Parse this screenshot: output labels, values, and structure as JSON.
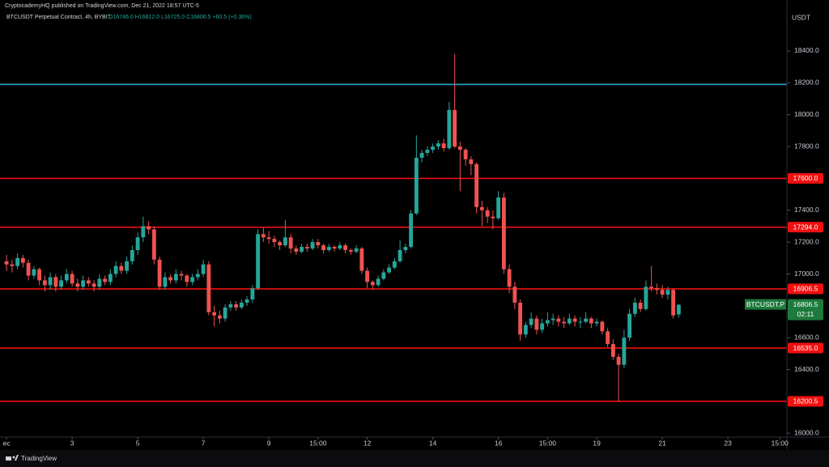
{
  "header": {
    "publisher": "CryptocademyHQ published on TradingView.com, Dec 21, 2022 18:57 UTC-5"
  },
  "footer": {
    "brand": "TradingView"
  },
  "chart_data": {
    "type": "candlestick",
    "symbol": "BTCUSDT Perpetual Contract, 4h, BYBIT",
    "ohlc": "O16746.0 H16812.0 L16725.0 C16806.5 +60.5 (+0.36%)",
    "currency": "USDT",
    "up_color": "#26a69a",
    "down_color": "#ef5350",
    "xlim": [
      -1.2,
      142.5
    ],
    "ylim": [
      15900,
      18720
    ],
    "xticks": [
      {
        "value": 0,
        "label": "ec"
      },
      {
        "value": 12,
        "label": "3"
      },
      {
        "value": 24,
        "label": "5"
      },
      {
        "value": 36,
        "label": "7"
      },
      {
        "value": 48,
        "label": "9"
      },
      {
        "value": 57,
        "label": "15:00"
      },
      {
        "value": 66,
        "label": "12"
      },
      {
        "value": 78,
        "label": "14"
      },
      {
        "value": 90,
        "label": "16"
      },
      {
        "value": 99,
        "label": "15:00"
      },
      {
        "value": 108,
        "label": "19"
      },
      {
        "value": 120,
        "label": "21"
      },
      {
        "value": 132,
        "label": "23"
      },
      {
        "value": 141.5,
        "label": "15:00"
      }
    ],
    "yticks": [
      {
        "value": 18400,
        "label": "18400.0"
      },
      {
        "value": 18200,
        "label": "18200.0"
      },
      {
        "value": 18000,
        "label": "18000.0"
      },
      {
        "value": 17800,
        "label": "17800.0"
      },
      {
        "value": 17400,
        "label": "17400.0"
      },
      {
        "value": 17200,
        "label": "17200.0"
      },
      {
        "value": 17000,
        "label": "17000.0"
      },
      {
        "value": 16600,
        "label": "16600.0"
      },
      {
        "value": 16400,
        "label": "16400.0"
      },
      {
        "value": 16000,
        "label": "16000.0"
      }
    ],
    "levels": [
      {
        "value": 18190,
        "color": "#22a8c8"
      },
      {
        "value": 17600,
        "label": "17600.0",
        "color": "#f01010"
      },
      {
        "value": 17294,
        "label": "17294.0",
        "color": "#f01010"
      },
      {
        "value": 16906.5,
        "label": "16906.5",
        "color": "#f01010"
      },
      {
        "value": 16535,
        "label": "16535.0",
        "color": "#f01010"
      },
      {
        "value": 16200.5,
        "label": "16200.5",
        "color": "#f01010"
      }
    ],
    "last_price": {
      "name": "BTCUSDT.P",
      "value": 16806.5,
      "label": "16806.5",
      "countdown": "02:11",
      "color": "#1e7a3c"
    },
    "candles": [
      [
        17080,
        17120,
        17020,
        17060
      ],
      [
        17060,
        17090,
        17010,
        17050
      ],
      [
        17050,
        17130,
        17030,
        17100
      ],
      [
        17100,
        17120,
        17040,
        17070
      ],
      [
        17070,
        17090,
        16960,
        16990
      ],
      [
        16990,
        17050,
        16970,
        17030
      ],
      [
        17030,
        17040,
        16930,
        16960
      ],
      [
        16960,
        16990,
        16890,
        16930
      ],
      [
        16930,
        17010,
        16900,
        16980
      ],
      [
        16980,
        17000,
        16890,
        16920
      ],
      [
        16920,
        16990,
        16900,
        16960
      ],
      [
        16960,
        17030,
        16940,
        17000
      ],
      [
        17000,
        17020,
        16920,
        16940
      ],
      [
        16940,
        16970,
        16890,
        16920
      ],
      [
        16920,
        16990,
        16900,
        16960
      ],
      [
        16960,
        16980,
        16920,
        16940
      ],
      [
        16940,
        16960,
        16890,
        16920
      ],
      [
        16920,
        17000,
        16900,
        16970
      ],
      [
        16970,
        16990,
        16930,
        16950
      ],
      [
        16950,
        17030,
        16930,
        17000
      ],
      [
        17000,
        17080,
        16980,
        17050
      ],
      [
        17050,
        17070,
        17000,
        17020
      ],
      [
        17020,
        17110,
        17000,
        17080
      ],
      [
        17080,
        17180,
        17060,
        17150
      ],
      [
        17150,
        17260,
        17120,
        17230
      ],
      [
        17230,
        17360,
        17200,
        17300
      ],
      [
        17300,
        17330,
        17250,
        17280
      ],
      [
        17280,
        17300,
        17060,
        17090
      ],
      [
        17090,
        17110,
        16900,
        16920
      ],
      [
        16920,
        17010,
        16900,
        16980
      ],
      [
        16980,
        17000,
        16940,
        16960
      ],
      [
        16960,
        17030,
        16940,
        17000
      ],
      [
        17000,
        17020,
        16960,
        16990
      ],
      [
        16990,
        17000,
        16920,
        16950
      ],
      [
        16950,
        17000,
        16930,
        16980
      ],
      [
        16980,
        17030,
        16960,
        17000
      ],
      [
        17000,
        17090,
        16980,
        17060
      ],
      [
        17060,
        17080,
        16740,
        16760
      ],
      [
        16760,
        16800,
        16670,
        16740
      ],
      [
        16740,
        16770,
        16690,
        16720
      ],
      [
        16720,
        16810,
        16700,
        16790
      ],
      [
        16790,
        16830,
        16770,
        16810
      ],
      [
        16810,
        16830,
        16770,
        16790
      ],
      [
        16790,
        16840,
        16780,
        16820
      ],
      [
        16820,
        16860,
        16800,
        16840
      ],
      [
        16840,
        16930,
        16820,
        16910
      ],
      [
        16910,
        17280,
        16900,
        17250
      ],
      [
        17250,
        17290,
        17200,
        17230
      ],
      [
        17230,
        17270,
        17190,
        17220
      ],
      [
        17220,
        17240,
        17170,
        17200
      ],
      [
        17200,
        17210,
        17150,
        17180
      ],
      [
        17180,
        17340,
        17170,
        17230
      ],
      [
        17230,
        17250,
        17130,
        17160
      ],
      [
        17160,
        17180,
        17120,
        17140
      ],
      [
        17140,
        17190,
        17130,
        17170
      ],
      [
        17170,
        17190,
        17140,
        17160
      ],
      [
        17160,
        17220,
        17150,
        17200
      ],
      [
        17200,
        17220,
        17160,
        17180
      ],
      [
        17180,
        17190,
        17130,
        17150
      ],
      [
        17150,
        17190,
        17140,
        17170
      ],
      [
        17170,
        17180,
        17140,
        17160
      ],
      [
        17160,
        17200,
        17150,
        17180
      ],
      [
        17180,
        17190,
        17130,
        17150
      ],
      [
        17150,
        17160,
        17120,
        17140
      ],
      [
        17140,
        17180,
        17130,
        17160
      ],
      [
        17160,
        17170,
        17000,
        17020
      ],
      [
        17020,
        17040,
        16910,
        16950
      ],
      [
        16950,
        16960,
        16900,
        16930
      ],
      [
        16930,
        16990,
        16920,
        16970
      ],
      [
        16970,
        17030,
        16960,
        17010
      ],
      [
        17010,
        17060,
        17000,
        17040
      ],
      [
        17040,
        17100,
        17030,
        17080
      ],
      [
        17080,
        17210,
        17070,
        17150
      ],
      [
        17150,
        17190,
        17130,
        17170
      ],
      [
        17170,
        17400,
        17160,
        17380
      ],
      [
        17380,
        17870,
        17370,
        17730
      ],
      [
        17730,
        17780,
        17700,
        17760
      ],
      [
        17760,
        17800,
        17740,
        17780
      ],
      [
        17780,
        17820,
        17760,
        17800
      ],
      [
        17800,
        17840,
        17780,
        17820
      ],
      [
        17820,
        17850,
        17770,
        17790
      ],
      [
        17790,
        18080,
        17780,
        18030
      ],
      [
        18030,
        18380,
        17790,
        17800
      ],
      [
        17800,
        17830,
        17520,
        17780
      ],
      [
        17780,
        17790,
        17680,
        17720
      ],
      [
        17720,
        17740,
        17620,
        17690
      ],
      [
        17690,
        17700,
        17380,
        17420
      ],
      [
        17420,
        17460,
        17300,
        17400
      ],
      [
        17400,
        17420,
        17320,
        17360
      ],
      [
        17360,
        17400,
        17280,
        17350
      ],
      [
        17350,
        17520,
        17340,
        17480
      ],
      [
        17480,
        17510,
        17000,
        17030
      ],
      [
        17030,
        17060,
        16880,
        16920
      ],
      [
        16920,
        16950,
        16780,
        16820
      ],
      [
        16820,
        16840,
        16580,
        16620
      ],
      [
        16620,
        16700,
        16600,
        16680
      ],
      [
        16680,
        16760,
        16660,
        16720
      ],
      [
        16720,
        16740,
        16620,
        16650
      ],
      [
        16650,
        16720,
        16630,
        16690
      ],
      [
        16690,
        16760,
        16670,
        16710
      ],
      [
        16710,
        16750,
        16680,
        16720
      ],
      [
        16720,
        16740,
        16670,
        16700
      ],
      [
        16700,
        16730,
        16660,
        16690
      ],
      [
        16690,
        16750,
        16680,
        16720
      ],
      [
        16720,
        16740,
        16670,
        16700
      ],
      [
        16700,
        16730,
        16660,
        16700
      ],
      [
        16700,
        16760,
        16690,
        16720
      ],
      [
        16720,
        16730,
        16660,
        16690
      ],
      [
        16690,
        16720,
        16670,
        16700
      ],
      [
        16700,
        16710,
        16620,
        16640
      ],
      [
        16640,
        16660,
        16540,
        16560
      ],
      [
        16560,
        16590,
        16460,
        16480
      ],
      [
        16480,
        16500,
        16200,
        16430
      ],
      [
        16430,
        16650,
        16410,
        16600
      ],
      [
        16600,
        16780,
        16580,
        16750
      ],
      [
        16750,
        16850,
        16730,
        16820
      ],
      [
        16820,
        16840,
        16760,
        16780
      ],
      [
        16780,
        16960,
        16770,
        16920
      ],
      [
        16920,
        17050,
        16890,
        16910
      ],
      [
        16910,
        16940,
        16870,
        16900
      ],
      [
        16900,
        16930,
        16850,
        16870
      ],
      [
        16870,
        16920,
        16840,
        16900
      ],
      [
        16900,
        16910,
        16720,
        16740
      ],
      [
        16746,
        16812,
        16725,
        16806.5
      ]
    ]
  }
}
